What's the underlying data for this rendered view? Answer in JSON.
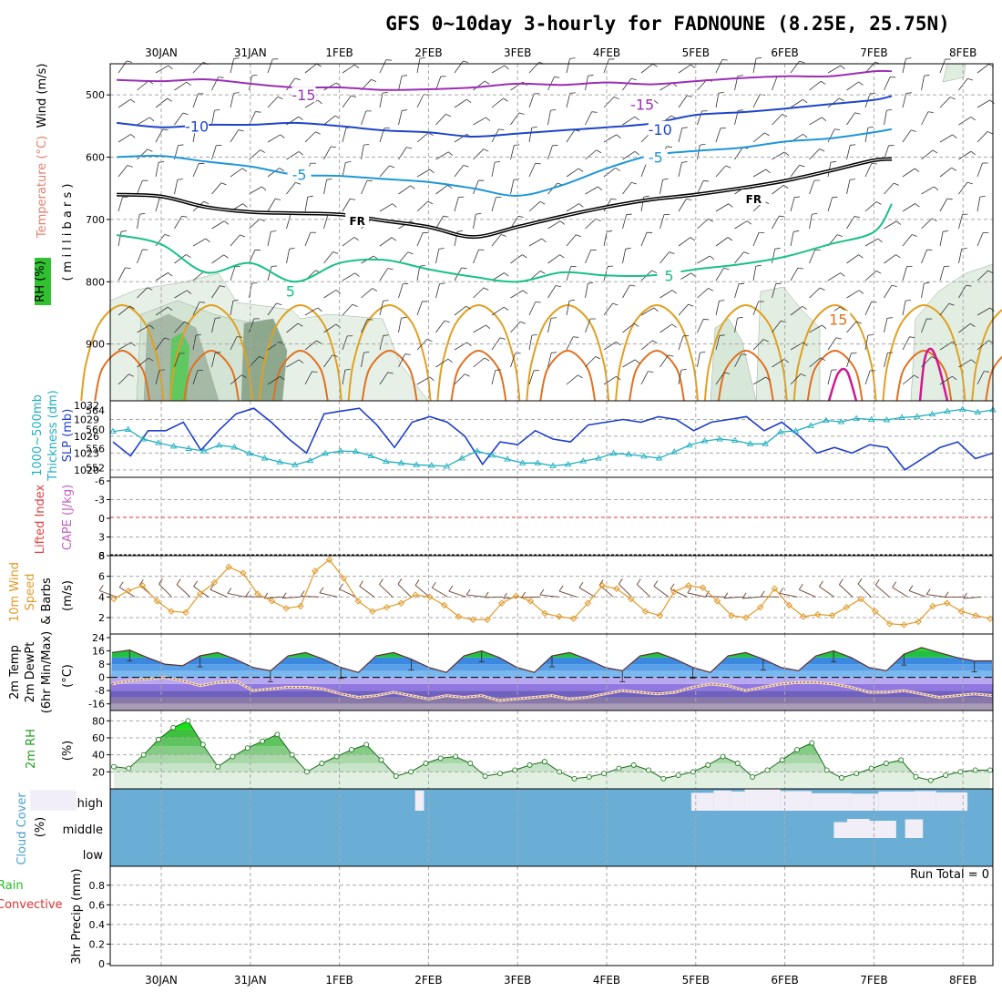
{
  "title": "GFS 0~10day 3-hourly for FADNOUNE (8.25E, 25.75N)",
  "date_labels": [
    "30JAN",
    "31JAN",
    "1FEB",
    "2FEB",
    "3FEB",
    "4FEB",
    "5FEB",
    "6FEB",
    "7FEB",
    "8FEB"
  ],
  "colors": {
    "grid": "#a8a8a8",
    "temp15": "#9a2fb5",
    "temp10": "#1e45c8",
    "temp5": "#1e96d8",
    "freezing": "#000000",
    "tempp5": "#18c08a",
    "warm10": "#e0a020",
    "warm15": "#e07020",
    "warm20": "#d01890",
    "slp": "#1e3ec8",
    "thick": "#20b0c0",
    "wind10": "#e09a2a",
    "cloud_bg": "#6aaed6",
    "cloud_fill": "#f2eef8",
    "rh_green": "#20c020",
    "rh_pale": "#e2f0e2"
  },
  "panel_labels": {
    "upper": [
      "RH (%)",
      "Temperature (°C)",
      "Wind (m/s)",
      "( m i l l i b a r s )"
    ],
    "slp": [
      "1000~500mb",
      "Thickness (dm)",
      "SLP (mb)"
    ],
    "cape": [
      "Lifted Index",
      "CAPE (J/kg)"
    ],
    "wind10": [
      "10m Wind",
      "Speed",
      "& Barbs",
      "(m/s)"
    ],
    "temp2m": [
      "2m Temp",
      "2m DewPt",
      "(6hr Min/Max)",
      "(°C)"
    ],
    "rh2m": [
      "2m RH",
      "(%)"
    ],
    "cloud": [
      "Cloud Cover",
      "(%)"
    ],
    "precip": [
      "Total / Rain",
      "Convective",
      "3hr Precip (mm)"
    ]
  },
  "cloud_levels": [
    "high",
    "middle",
    "low"
  ],
  "run_total": "Run Total = 0",
  "chart_data": [
    {
      "type": "contour",
      "name": "upper_air",
      "y_ticks": [
        "500",
        "600",
        "700",
        "800",
        "900"
      ],
      "ylim": [
        450,
        1000
      ],
      "contour_labels": [
        {
          "text": "-15",
          "day": 1.6,
          "p": 500
        },
        {
          "text": "-15",
          "day": 5.4,
          "p": 515
        },
        {
          "text": "-10",
          "day": 0.4,
          "p": 550
        },
        {
          "text": "-10",
          "day": 5.6,
          "p": 555
        },
        {
          "text": "-5",
          "day": 1.55,
          "p": 628
        },
        {
          "text": "-5",
          "day": 5.55,
          "p": 600
        },
        {
          "text": "FR",
          "day": 2.2,
          "p": 700
        },
        {
          "text": "FR",
          "day": 6.65,
          "p": 665
        },
        {
          "text": "5",
          "day": 1.45,
          "p": 815
        },
        {
          "text": "5",
          "day": 5.7,
          "p": 790
        },
        {
          "text": "15",
          "day": 7.6,
          "p": 860
        }
      ],
      "series": [
        {
          "name": "-15",
          "color_key": "temp15",
          "points": [
            [
              -0.5,
              476
            ],
            [
              0,
              478
            ],
            [
              0.5,
              475
            ],
            [
              1,
              482
            ],
            [
              1.5,
              488
            ],
            [
              2,
              488
            ],
            [
              2.5,
              492
            ],
            [
              3,
              491
            ],
            [
              3.5,
              488
            ],
            [
              4,
              482
            ],
            [
              4.5,
              484
            ],
            [
              5,
              480
            ],
            [
              5.5,
              483
            ],
            [
              6,
              478
            ],
            [
              6.5,
              473
            ],
            [
              7,
              470
            ],
            [
              7.5,
              470
            ],
            [
              8,
              462
            ],
            [
              8.2,
              462
            ]
          ]
        },
        {
          "name": "-10",
          "color_key": "temp10",
          "points": [
            [
              -0.5,
              545
            ],
            [
              0,
              552
            ],
            [
              0.5,
              548
            ],
            [
              1,
              548
            ],
            [
              1.5,
              545
            ],
            [
              2,
              550
            ],
            [
              2.5,
              557
            ],
            [
              3,
              560
            ],
            [
              3.5,
              567
            ],
            [
              4,
              562
            ],
            [
              4.5,
              557
            ],
            [
              5,
              552
            ],
            [
              5.5,
              546
            ],
            [
              6,
              532
            ],
            [
              6.5,
              528
            ],
            [
              7,
              522
            ],
            [
              7.5,
              515
            ],
            [
              8,
              508
            ],
            [
              8.2,
              502
            ]
          ]
        },
        {
          "name": "-5",
          "color_key": "temp5",
          "points": [
            [
              -0.5,
              600
            ],
            [
              0,
              598
            ],
            [
              0.5,
              607
            ],
            [
              1,
              615
            ],
            [
              1.5,
              628
            ],
            [
              2,
              630
            ],
            [
              2.5,
              635
            ],
            [
              3,
              640
            ],
            [
              3.5,
              650
            ],
            [
              4,
              662
            ],
            [
              4.5,
              645
            ],
            [
              5,
              618
            ],
            [
              5.5,
              597
            ],
            [
              6,
              590
            ],
            [
              6.5,
              585
            ],
            [
              7,
              575
            ],
            [
              7.5,
              570
            ],
            [
              8,
              560
            ],
            [
              8.2,
              555
            ]
          ]
        },
        {
          "name": "FR",
          "color_key": "freezing",
          "points": [
            [
              -0.5,
              660
            ],
            [
              0,
              663
            ],
            [
              0.5,
              680
            ],
            [
              1,
              688
            ],
            [
              1.5,
              690
            ],
            [
              2,
              692
            ],
            [
              2.5,
              702
            ],
            [
              3,
              712
            ],
            [
              3.5,
              728
            ],
            [
              4,
              712
            ],
            [
              4.5,
              695
            ],
            [
              5,
              680
            ],
            [
              5.5,
              668
            ],
            [
              6,
              660
            ],
            [
              6.5,
              650
            ],
            [
              7,
              638
            ],
            [
              7.5,
              622
            ],
            [
              8,
              605
            ],
            [
              8.2,
              603
            ]
          ]
        },
        {
          "name": "+5",
          "color_key": "tempp5",
          "points": [
            [
              -0.5,
              725
            ],
            [
              0,
              740
            ],
            [
              0.5,
              785
            ],
            [
              1,
              770
            ],
            [
              1.5,
              800
            ],
            [
              2,
              770
            ],
            [
              2.5,
              765
            ],
            [
              3,
              780
            ],
            [
              3.5,
              792
            ],
            [
              4,
              800
            ],
            [
              4.5,
              785
            ],
            [
              5,
              790
            ],
            [
              5.5,
              790
            ],
            [
              6,
              780
            ],
            [
              6.5,
              772
            ],
            [
              7,
              760
            ],
            [
              7.5,
              740
            ],
            [
              8,
              720
            ],
            [
              8.2,
              675
            ]
          ]
        }
      ]
    },
    {
      "type": "line",
      "name": "slp_thickness",
      "y_ticks_left": [
        "564",
        "560",
        "556",
        "552"
      ],
      "y_ticks_right": [
        "1032",
        "1029",
        "1026",
        "1023",
        "1020"
      ],
      "slp_ylim": [
        1019,
        1032
      ],
      "thickness_ylim": [
        550,
        566
      ],
      "series": [
        {
          "name": "SLP (mb)",
          "color_key": "slp",
          "values": [
            1025,
            1022.5,
            1027,
            1027,
            1028.5,
            1023.5,
            1027,
            1030,
            1031,
            1028.5,
            1025.5,
            1023,
            1030,
            1030.5,
            1031,
            1028,
            1024,
            1028.5,
            1029.5,
            1028.5,
            1026,
            1021,
            1025,
            1024.5,
            1027,
            1025.5,
            1025,
            1028,
            1028.5,
            1029,
            1028.5,
            1029.5,
            1029,
            1027,
            1028.5,
            1029,
            1029.5,
            1027,
            1028.5,
            1026,
            1023,
            1024,
            1023,
            1024.5,
            1024,
            1020,
            1022,
            1024,
            1025,
            1022,
            1023
          ]
        },
        {
          "name": "Thickness (dm)",
          "color_key": "thick",
          "values": [
            559.6,
            560,
            558,
            557.2,
            556.5,
            556,
            555.5,
            556.7,
            556.3,
            555,
            554,
            553.2,
            552.6,
            553.5,
            555,
            555.5,
            555.4,
            554.5,
            553.3,
            553,
            552.6,
            552.5,
            552.3,
            554,
            555.5,
            554.6,
            553.8,
            553,
            553,
            552.4,
            552.7,
            553.4,
            554,
            555,
            554.8,
            554.4,
            554,
            555.3,
            556.7,
            557.6,
            558,
            557.7,
            557,
            557,
            559.5,
            559.7,
            560.8,
            561.9,
            561.6,
            562.3,
            562.1,
            562,
            562.5,
            562.7,
            563.2,
            563.8,
            564.2,
            563.6,
            564.1
          ]
        }
      ]
    },
    {
      "type": "line",
      "name": "cape_li",
      "y_ticks": [
        "-6",
        "-3",
        "0",
        "3",
        "6"
      ],
      "ylim": [
        -6,
        6
      ],
      "series": [
        {
          "name": "Lifted Index",
          "values": [
            0
          ]
        }
      ]
    },
    {
      "type": "line",
      "name": "wind10m",
      "y_ticks": [
        "8",
        "6",
        "4",
        "2"
      ],
      "ylim": [
        1,
        8
      ],
      "series": [
        {
          "name": "10m Wind Speed (m/s)",
          "color_key": "wind10",
          "values": [
            3.8,
            4.6,
            5.1,
            3.6,
            2.6,
            2.5,
            4.3,
            5.4,
            6.9,
            6.3,
            4.3,
            3.6,
            2.9,
            3.1,
            6.5,
            7.6,
            5.8,
            3.6,
            2.6,
            3.0,
            3.4,
            4.2,
            4.0,
            3.2,
            2.1,
            1.8,
            1.8,
            3.4,
            4.1,
            3.6,
            2.4,
            2.1,
            1.9,
            3.4,
            5.1,
            4.8,
            3.8,
            2.6,
            2.2,
            4.5,
            5.1,
            4.9,
            3.6,
            2.2,
            2.0,
            3.0,
            4.8,
            3.2,
            2.1,
            2.3,
            2.2,
            3.0,
            3.8,
            2.6,
            1.4,
            1.3,
            1.6,
            3.1,
            3.4,
            2.6,
            2.2,
            1.9
          ]
        }
      ]
    },
    {
      "type": "area",
      "name": "temp2m",
      "y_ticks": [
        "24",
        "16",
        "8",
        "0",
        "-8",
        "-16"
      ],
      "ylim": [
        -20,
        24
      ],
      "series": [
        {
          "name": "2m Temp",
          "values": [
            15,
            16.5,
            12,
            8,
            7,
            13,
            15,
            11,
            6,
            4,
            13,
            15,
            11,
            6,
            3,
            13,
            15,
            11,
            6,
            3,
            13,
            16,
            12,
            6,
            3,
            13,
            15,
            11,
            6,
            4,
            13,
            15,
            11,
            6,
            3,
            13,
            15,
            11,
            6,
            4,
            13,
            16,
            12,
            6,
            4,
            14,
            18,
            15,
            12,
            10,
            10
          ]
        },
        {
          "name": "2m DewPt",
          "values": [
            -4,
            -2,
            -1,
            0,
            -2,
            -5,
            -3,
            -2,
            -8,
            -7,
            -6,
            -6,
            -7,
            -10,
            -12,
            -11,
            -9,
            -11,
            -13,
            -11,
            -12,
            -11,
            -14,
            -13,
            -12,
            -11,
            -13,
            -12,
            -10,
            -8,
            -9,
            -10,
            -9,
            -6,
            -4,
            -5,
            -8,
            -6,
            -4,
            -3,
            -3,
            -4,
            -6,
            -9,
            -9,
            -8,
            -10,
            -12,
            -11,
            -10,
            -11
          ]
        }
      ]
    },
    {
      "type": "area",
      "name": "rh2m",
      "y_ticks": [
        "80",
        "60",
        "40",
        "20"
      ],
      "ylim": [
        0,
        90
      ],
      "series": [
        {
          "name": "2m RH (%)",
          "color_key": "rh_green",
          "values": [
            26,
            24,
            40,
            58,
            72,
            80,
            52,
            26,
            38,
            48,
            56,
            64,
            40,
            20,
            30,
            38,
            46,
            52,
            34,
            15,
            20,
            30,
            36,
            38,
            30,
            15,
            18,
            22,
            28,
            32,
            20,
            12,
            14,
            18,
            24,
            28,
            22,
            12,
            16,
            20,
            28,
            38,
            30,
            14,
            22,
            34,
            46,
            54,
            22,
            13,
            18,
            24,
            30,
            34,
            14,
            10,
            16,
            20,
            22,
            22
          ]
        }
      ]
    },
    {
      "type": "bar",
      "name": "cloud_cover",
      "categories": [
        "high",
        "middle",
        "low"
      ],
      "series": [
        {
          "name": "high",
          "segments": [
            [
              -0.47,
              0.05,
              95
            ],
            [
              3.85,
              3.95,
              92
            ],
            [
              6.95,
              7.2,
              82
            ],
            [
              7.2,
              7.4,
              92
            ],
            [
              7.4,
              7.55,
              88
            ],
            [
              7.55,
              7.95,
              98
            ],
            [
              7.95,
              8.3,
              90
            ],
            [
              8.3,
              8.75,
              80
            ],
            [
              8.75,
              9.05,
              78
            ],
            [
              9.05,
              9.45,
              88
            ],
            [
              9.45,
              9.7,
              90
            ],
            [
              9.7,
              10.05,
              84
            ]
          ]
        },
        {
          "name": "middle",
          "segments": [
            [
              8.55,
              8.85,
              70
            ],
            [
              8.7,
              8.95,
              84
            ],
            [
              8.95,
              9.25,
              76
            ],
            [
              9.35,
              9.55,
              82
            ]
          ]
        },
        {
          "name": "low",
          "segments": []
        }
      ]
    },
    {
      "type": "bar",
      "name": "precip3h",
      "y_ticks": [
        "0.8",
        "0.6",
        "0.4",
        "0.2",
        "0"
      ],
      "ylim": [
        0,
        0.9
      ],
      "series": [
        {
          "name": "Total",
          "values": []
        },
        {
          "name": "Convective",
          "values": []
        }
      ]
    }
  ]
}
